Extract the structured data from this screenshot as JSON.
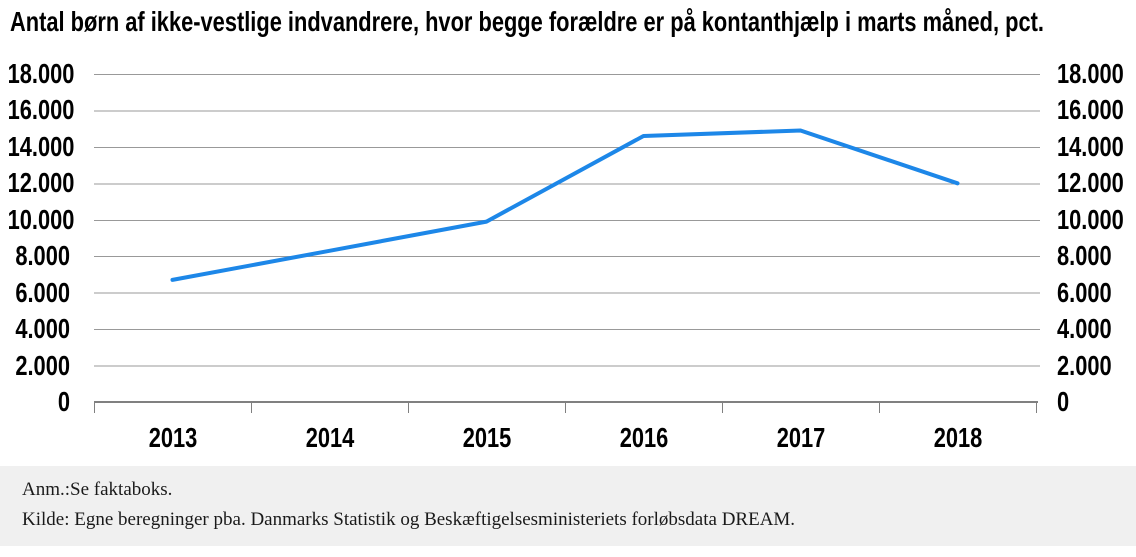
{
  "title": "Antal børn af ikke-vestlige indvandrere, hvor begge forældre er på kontanthjælp i marts måned, pct.",
  "footer": {
    "note": "Anm.:Se faktaboks.",
    "source": "Kilde: Egne beregninger pba. Danmarks Statistik og Beskæftigelsesministeriets forløbsdata DREAM.",
    "background": "#f0f0f0"
  },
  "chart_data": {
    "type": "line",
    "title": "Antal børn af ikke-vestlige indvandrere, hvor begge forældre er på kontanthjælp i marts måned, pct.",
    "categories": [
      "2013",
      "2014",
      "2015",
      "2016",
      "2017",
      "2018"
    ],
    "series": [
      {
        "name": "",
        "values": [
          6700,
          8300,
          9900,
          14600,
          14900,
          12000
        ]
      }
    ],
    "xlabel": "",
    "ylabel": "",
    "ylim": [
      0,
      18000
    ],
    "yticks": [
      {
        "v": 0,
        "label": "0"
      },
      {
        "v": 2000,
        "label": "2.000"
      },
      {
        "v": 4000,
        "label": "4.000"
      },
      {
        "v": 6000,
        "label": "6.000"
      },
      {
        "v": 8000,
        "label": "8.000"
      },
      {
        "v": 10000,
        "label": "10.000"
      },
      {
        "v": 12000,
        "label": "12.000"
      },
      {
        "v": 14000,
        "label": "14.000"
      },
      {
        "v": 16000,
        "label": "16.000"
      },
      {
        "v": 18000,
        "label": "18.000"
      }
    ],
    "grid": true,
    "legend": "none",
    "dual_y_axis_labels": true,
    "colors": {
      "line": "#1d87e8",
      "grid": "#999999",
      "axis": "#808080",
      "text": "#000000"
    }
  }
}
